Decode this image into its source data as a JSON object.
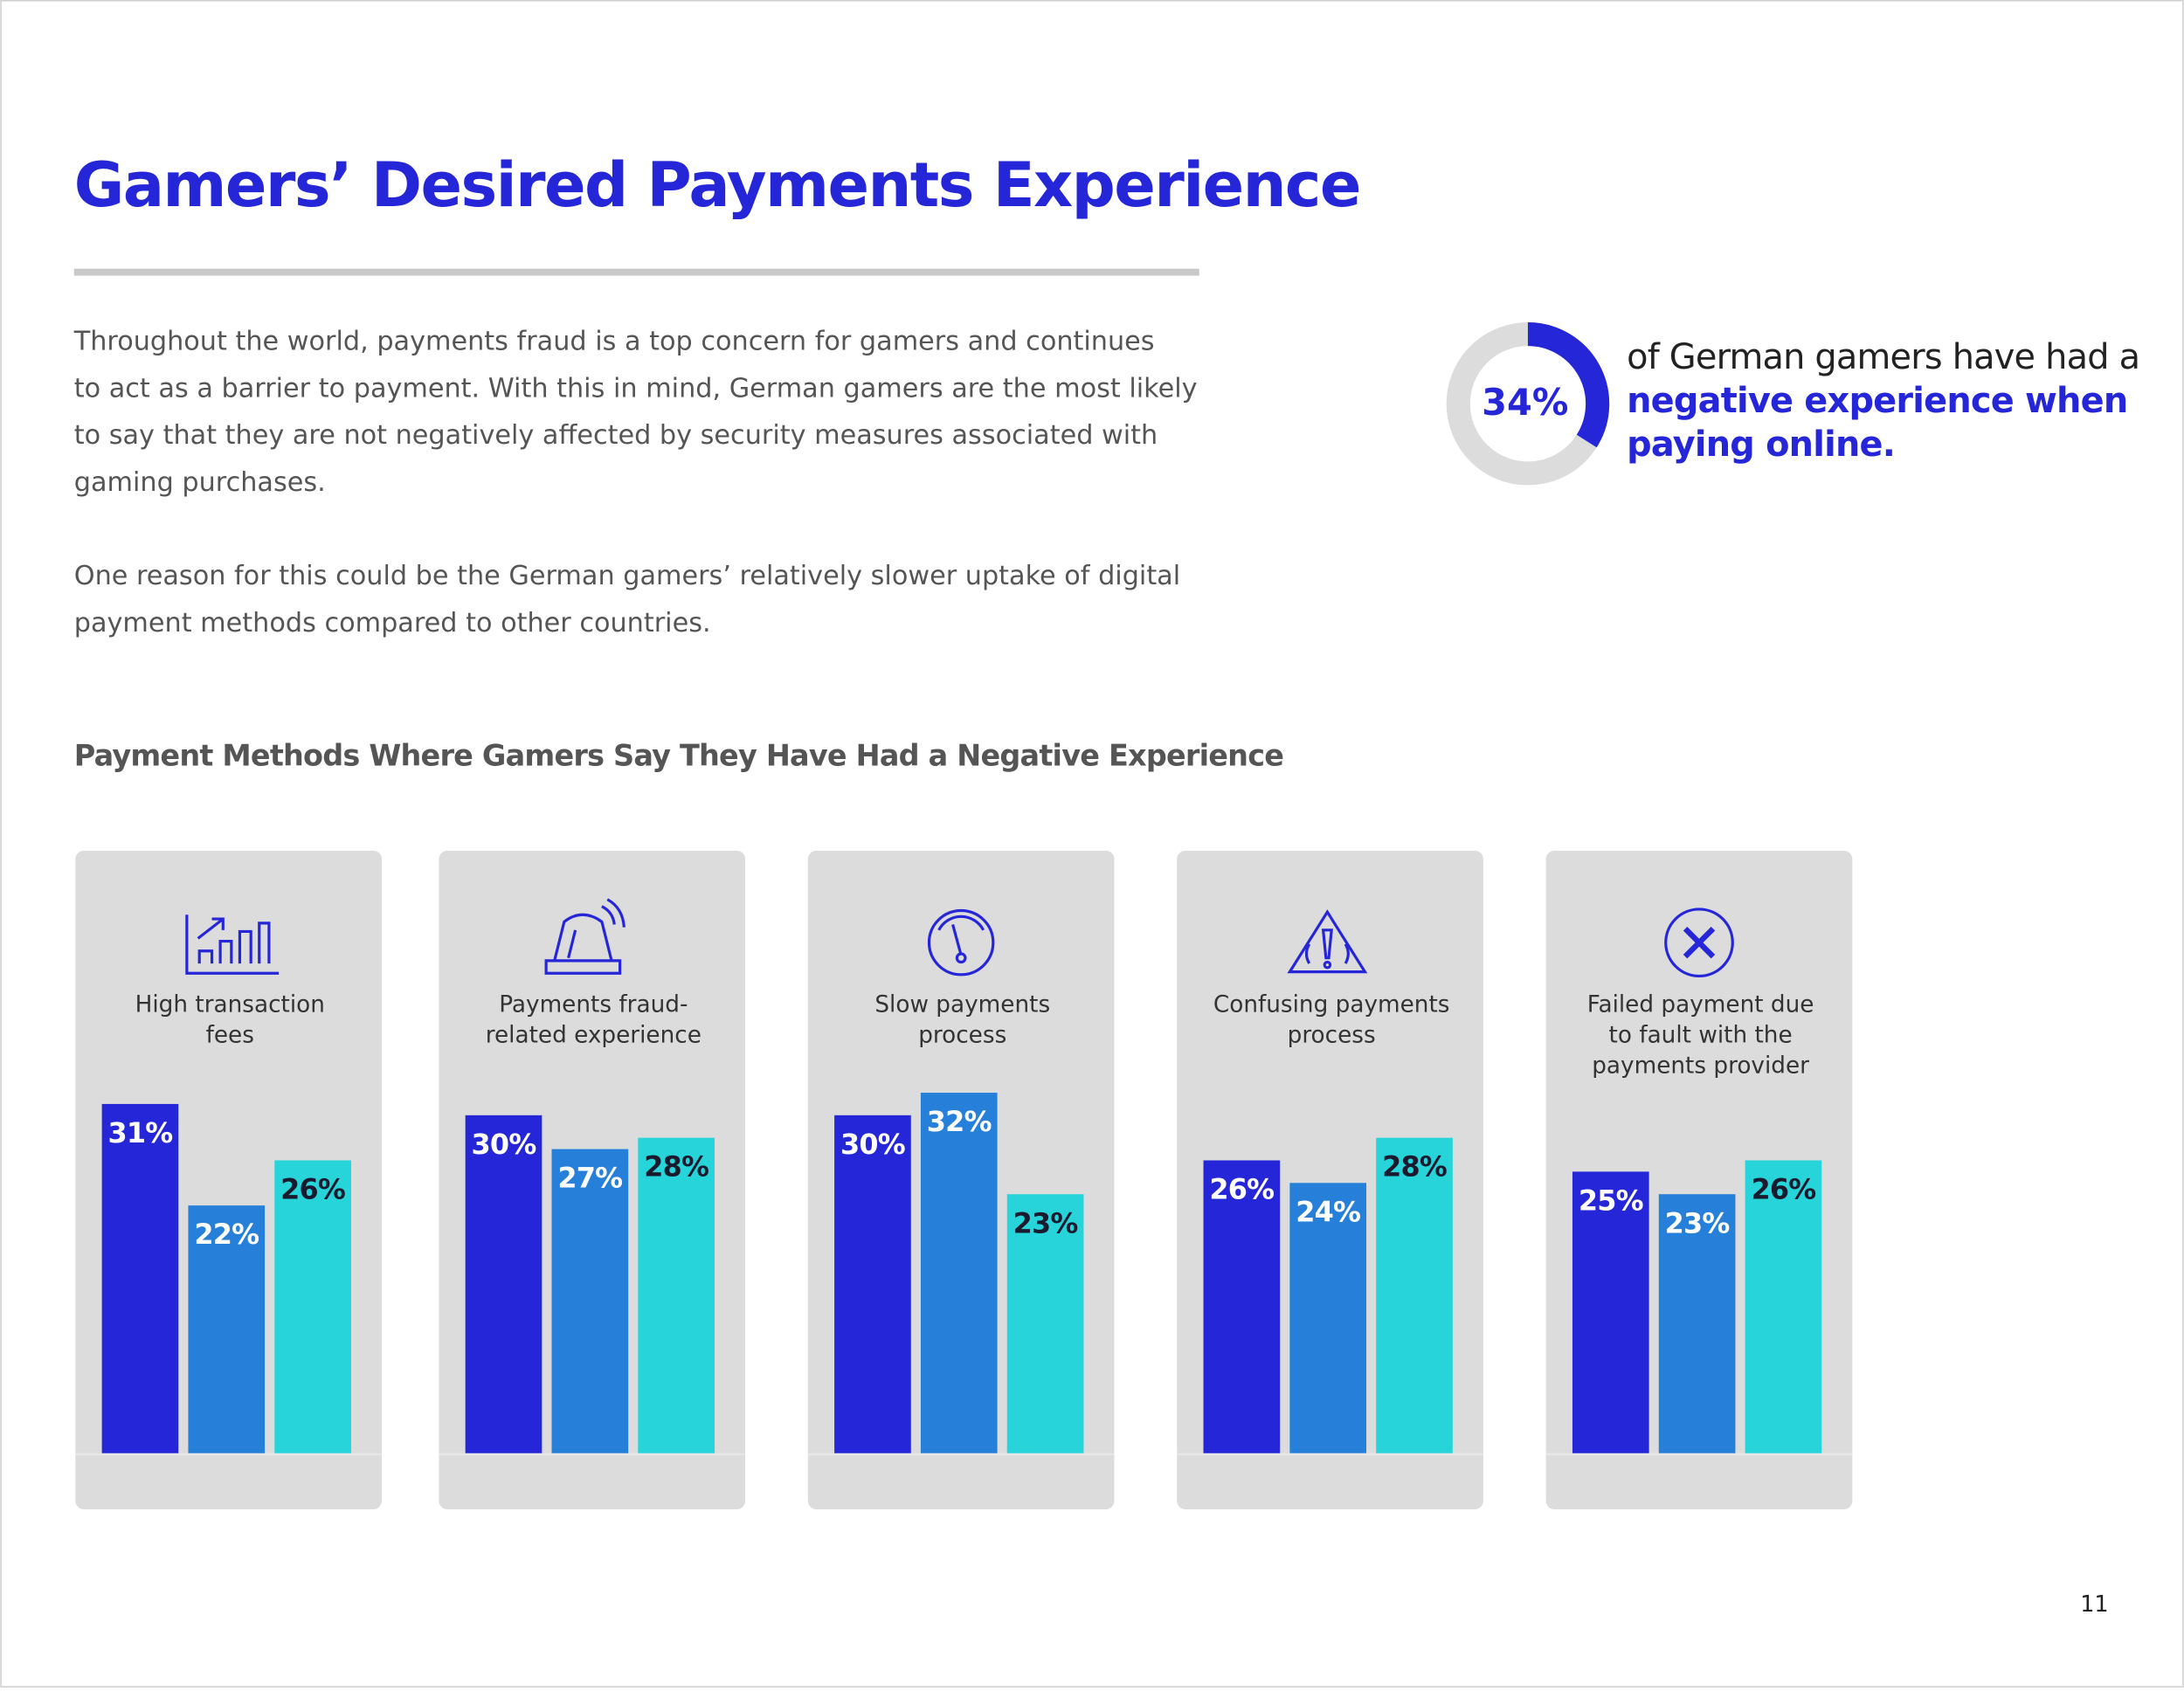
{
  "header": {
    "title": "Gamers’ Desired Payments Experience"
  },
  "body": {
    "paragraphs": [
      [
        "Throughout the world, payments fraud is a top concern for gamers and continues",
        "to act as a barrier to payment. With this in mind, German gamers are the most likely",
        "to say that they are not negatively affected by security measures associated with",
        "gaming purchases."
      ],
      [
        "One reason for this could be the German gamers’ relatively slower uptake of digital",
        "payment methods compared to other countries."
      ]
    ]
  },
  "stat": {
    "value": 34,
    "value_label": "34%",
    "color": "#2626d9",
    "lines": [
      "of German gamers have had a",
      "negative experience when",
      "paying online."
    ]
  },
  "chart_heading": "Payment Methods Where Gamers Say They Have Had a Negative Experience",
  "chart_data": [
    {
      "type": "bar",
      "title": [
        "High transaction",
        "fees"
      ],
      "values": [
        31,
        22,
        26
      ],
      "value_labels": [
        "31%",
        "22%",
        "26%"
      ],
      "colors": [
        "#2626d9",
        "#2680d9",
        "#26d4d9"
      ]
    },
    {
      "type": "bar",
      "title": [
        "Payments fraud-",
        "related experience"
      ],
      "values": [
        30,
        27,
        28
      ],
      "value_labels": [
        "30%",
        "27%",
        "28%"
      ],
      "colors": [
        "#2626d9",
        "#2680d9",
        "#26d4d9"
      ]
    },
    {
      "type": "bar",
      "title": [
        "Slow payments",
        "process"
      ],
      "values": [
        30,
        32,
        23
      ],
      "value_labels": [
        "30%",
        "32%",
        "23%"
      ],
      "colors": [
        "#2626d9",
        "#2680d9",
        "#26d4d9"
      ]
    },
    {
      "type": "bar",
      "title": [
        "Confusing payments",
        "process"
      ],
      "values": [
        26,
        24,
        28
      ],
      "value_labels": [
        "26%",
        "24%",
        "28%"
      ],
      "colors": [
        "#2626d9",
        "#2680d9",
        "#26d4d9"
      ]
    },
    {
      "type": "bar",
      "title": [
        "Failed payment due",
        "to fault with the",
        "payments provider"
      ],
      "values": [
        25,
        23,
        26
      ],
      "value_labels": [
        "25%",
        "23%",
        "26%"
      ],
      "colors": [
        "#2626d9",
        "#2680d9",
        "#26d4d9"
      ]
    }
  ],
  "footer": {
    "page_number": "11"
  }
}
